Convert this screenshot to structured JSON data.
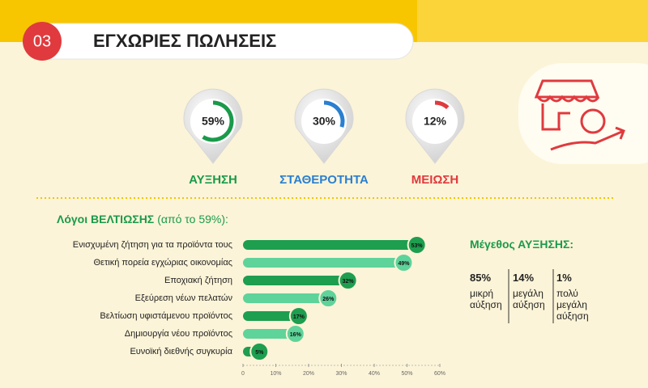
{
  "header": {
    "number": "03",
    "title": "ΕΓΧΩΡΙΕΣ ΠΩΛΗΣΕΙΣ"
  },
  "chart_data": [
    {
      "type": "donut",
      "title": "ΑΥΞΗΣΗ",
      "values": [
        59
      ],
      "value_labels": [
        "59%"
      ],
      "color": "#1a9a4a"
    },
    {
      "type": "donut",
      "title": "ΣΤΑΘΕΡΟΤΗΤΑ",
      "values": [
        30
      ],
      "value_labels": [
        "30%"
      ],
      "color": "#2a7fd0"
    },
    {
      "type": "donut",
      "title": "ΜΕΙΩΣΗ",
      "values": [
        12
      ],
      "value_labels": [
        "12%"
      ],
      "color": "#e03a3e"
    },
    {
      "type": "hbar",
      "title": "Λόγοι ΒΕΛΤΙΩΣΗΣ",
      "subtitle": "(από το 59%):",
      "categories": [
        "Ενισχυμένη ζήτηση για τα προϊόντα τους",
        "Θετική πορεία εγχώριας οικονομίας",
        "Εποχιακή ζήτηση",
        "Εξεύρεση νέων πελατών",
        "Βελτίωση υφιστάμενου προϊόντος",
        "Δημιουργία νέου προϊόντος",
        "Ευνοϊκή διεθνής συγκυρία"
      ],
      "values": [
        53,
        49,
        32,
        26,
        17,
        16,
        5
      ],
      "value_labels": [
        "53%",
        "49%",
        "32%",
        "26%",
        "17%",
        "16%",
        "5%"
      ],
      "colors": [
        "#1e9e4f",
        "#5ed39a",
        "#1e9e4f",
        "#5ed39a",
        "#1e9e4f",
        "#5ed39a",
        "#1e9e4f"
      ],
      "xlim": [
        0,
        60
      ],
      "xticks": [
        0,
        {
          "value": 10,
          "label": "10%"
        },
        {
          "value": 20,
          "label": "20%"
        },
        {
          "value": 30,
          "label": "30%"
        },
        {
          "value": 40,
          "label": "40%"
        },
        {
          "value": 50,
          "label": "50%"
        },
        {
          "value": 60,
          "label": "60%"
        }
      ]
    }
  ],
  "magnitude": {
    "title": "Μέγεθος ΑΥΞΗΣΗΣ:",
    "items": [
      {
        "percent": "85%",
        "label": "μικρή αύξηση"
      },
      {
        "percent": "14%",
        "label": "μεγάλη αύξηση"
      },
      {
        "percent": "1%",
        "label": "πολύ μεγάλη αύξηση"
      }
    ]
  }
}
